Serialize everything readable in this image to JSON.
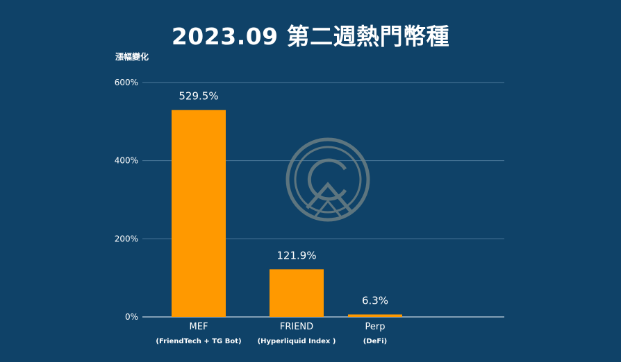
{
  "colors": {
    "background": "#0f4268",
    "bar": "#ff9900",
    "grid": "#4c7a9b",
    "axis": "#c8d6e2",
    "watermark": "#6b7f84"
  },
  "watermark": {
    "icon": "logo-watermark-icon"
  },
  "chart_data": {
    "type": "bar",
    "title": "2023.09 第二週熱門幣種",
    "ylabel": "漲幅變化",
    "xlabel": "",
    "ylim": [
      0,
      600
    ],
    "yticks": [
      {
        "value": 0,
        "label": "0%"
      },
      {
        "value": 200,
        "label": "200%"
      },
      {
        "value": 400,
        "label": "400%"
      },
      {
        "value": 600,
        "label": "600%"
      }
    ],
    "grid": true,
    "legend": "none",
    "categories": [
      {
        "name": "MEF",
        "sub": "(FriendTech + TG Bot)"
      },
      {
        "name": "FRIEND",
        "sub": "(Hyperliquid Index )"
      },
      {
        "name": "Perp",
        "sub": "(DeFi)"
      }
    ],
    "values": [
      529.5,
      121.9,
      6.3
    ],
    "data_labels": [
      "529.5%",
      "121.9%",
      "6.3%"
    ]
  }
}
